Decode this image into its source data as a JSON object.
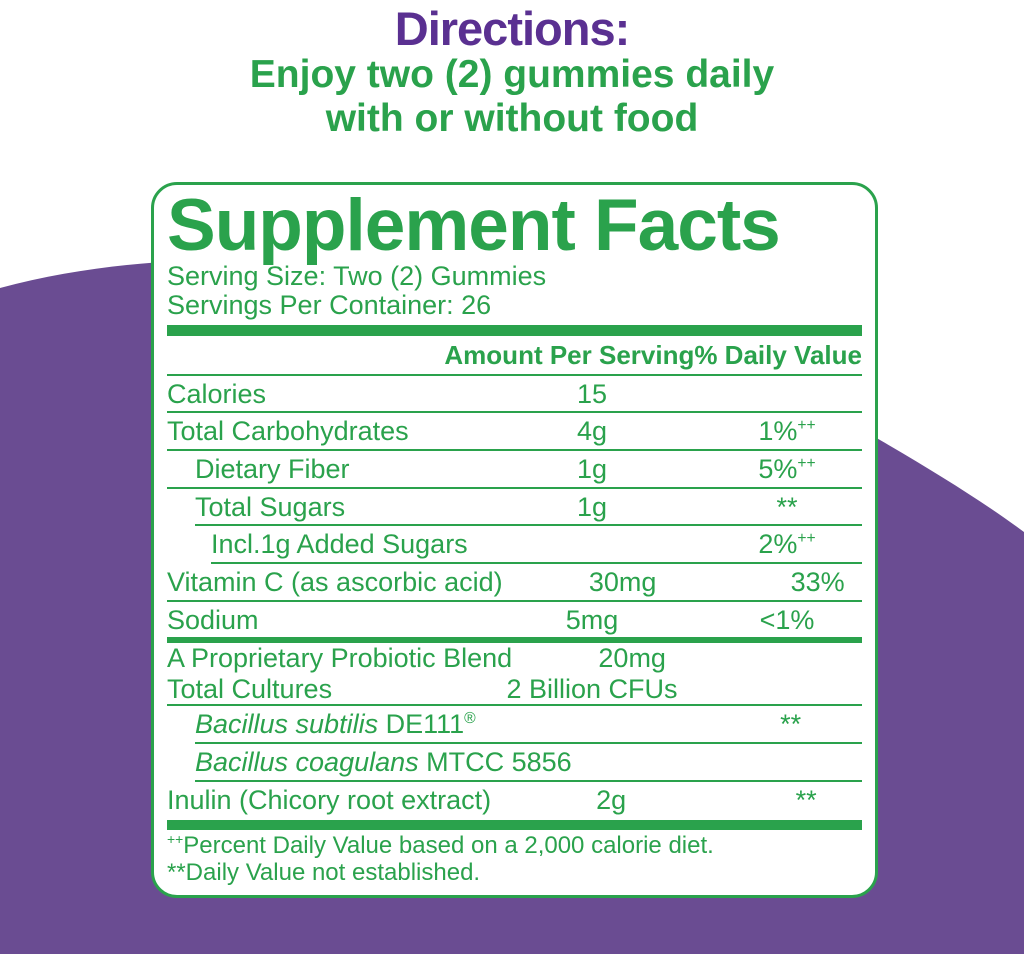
{
  "colors": {
    "green": "#2aa24c",
    "background_blob_purple": "#6a4c92",
    "directions_title_purple": "#5a3091"
  },
  "directions": {
    "title": "Directions:",
    "lines": [
      "Enjoy two (2) gummies daily",
      "with or without food"
    ]
  },
  "supplement_facts": {
    "title": "Supplement Facts",
    "serving_size": "Serving Size: Two (2) Gummies",
    "servings_per_container": "Servings Per Container: 26",
    "header": {
      "amount": "Amount Per Serving",
      "dv": "% Daily Value"
    },
    "rows": [
      {
        "sep": {
          "type": "thin",
          "indent": 0
        },
        "indent": 0,
        "name_parts": [
          {
            "text": "Calories"
          }
        ],
        "amount": "15",
        "dv_parts": []
      },
      {
        "sep": {
          "type": "thin",
          "indent": 0
        },
        "indent": 0,
        "name_parts": [
          {
            "text": "Total Carbohydrates"
          }
        ],
        "amount": "4g",
        "dv_parts": [
          {
            "text": "1%"
          },
          {
            "text": "++",
            "sup": true
          }
        ]
      },
      {
        "sep": {
          "type": "thin",
          "indent": 0
        },
        "indent": 1,
        "name_parts": [
          {
            "text": "Dietary Fiber"
          }
        ],
        "amount": "1g",
        "dv_parts": [
          {
            "text": "5%"
          },
          {
            "text": "++",
            "sup": true
          }
        ]
      },
      {
        "sep": {
          "type": "thin",
          "indent": 0
        },
        "indent": 1,
        "name_parts": [
          {
            "text": "Total Sugars"
          }
        ],
        "amount": "1g",
        "dv_parts": [
          {
            "text": "**"
          }
        ]
      },
      {
        "sep": {
          "type": "thin",
          "indent": 28
        },
        "indent": 2,
        "name_parts": [
          {
            "text": "Incl.1g Added Sugars"
          }
        ],
        "amount": "",
        "dv_parts": [
          {
            "text": "2%"
          },
          {
            "text": "++",
            "sup": true
          }
        ]
      },
      {
        "sep": {
          "type": "thin",
          "indent": 44
        },
        "indent": 0,
        "name_parts": [
          {
            "text": "Vitamin C (as ascorbic acid)"
          }
        ],
        "amount": "30mg",
        "dv_parts": [
          {
            "text": "33%"
          }
        ]
      },
      {
        "sep": {
          "type": "thin",
          "indent": 0
        },
        "indent": 0,
        "name_parts": [
          {
            "text": "Sodium"
          }
        ],
        "amount": "5mg",
        "dv_parts": [
          {
            "text": "<1%"
          }
        ]
      },
      {
        "sep": {
          "type": "bar-medium",
          "indent": 0
        },
        "indent": 0,
        "compact": true,
        "name_parts": [
          {
            "text": "A Proprietary Probiotic Blend"
          }
        ],
        "amount": "20mg",
        "dv_parts": []
      },
      {
        "sep": null,
        "indent": 0,
        "compact": true,
        "name_parts": [
          {
            "text": "Total Cultures"
          }
        ],
        "amount": "2 Billion CFUs",
        "dv_parts": []
      },
      {
        "sep": {
          "type": "thin",
          "indent": 0
        },
        "indent": 1,
        "name_parts": [
          {
            "text": "Bacillus subtilis ",
            "italic": true
          },
          {
            "text": "DE111"
          },
          {
            "text": "®",
            "sup": true
          }
        ],
        "amount": "",
        "dv_parts": [
          {
            "text": "**"
          }
        ]
      },
      {
        "sep": {
          "type": "thin",
          "indent": 28
        },
        "indent": 1,
        "name_parts": [
          {
            "text": "Bacillus coagulans ",
            "italic": true
          },
          {
            "text": "MTCC 5856"
          }
        ],
        "amount": "",
        "dv_parts": [
          {
            "text": "**"
          }
        ]
      },
      {
        "sep": {
          "type": "thin",
          "indent": 28
        },
        "indent": 0,
        "name_parts": [
          {
            "text": "Inulin (Chicory root extract)"
          }
        ],
        "amount": "2g",
        "dv_parts": [
          {
            "text": "**"
          }
        ]
      }
    ],
    "footnotes": [
      {
        "parts": [
          {
            "text": "++",
            "sup": true
          },
          {
            "text": "Percent Daily Value based on a 2,000 calorie diet."
          }
        ]
      },
      {
        "parts": [
          {
            "text": "**Daily Value not established."
          }
        ]
      }
    ]
  }
}
